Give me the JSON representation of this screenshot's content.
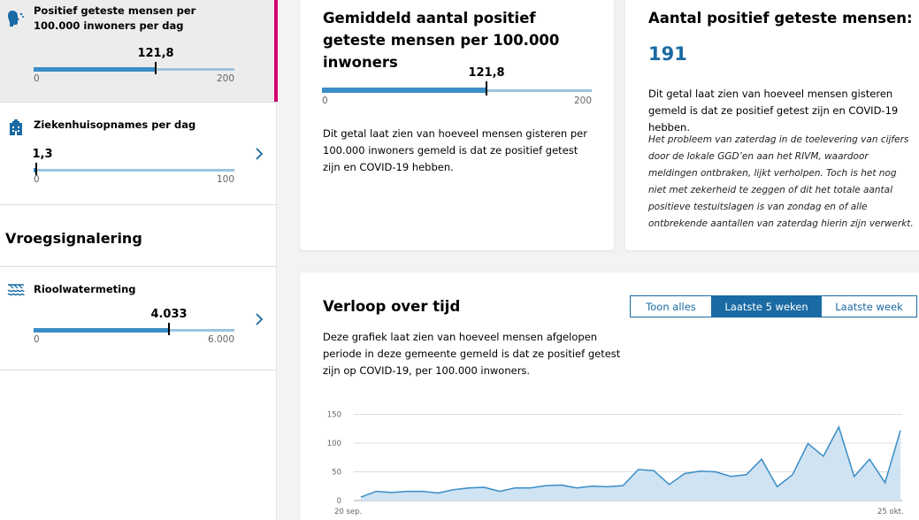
{
  "sidebar": {
    "items": [
      {
        "title": "Positief geteste mensen per 100.000 inwoners per dag",
        "value": 121.8,
        "value_label": "121,8",
        "min_label": "0",
        "max_label": "200",
        "max": 200
      },
      {
        "title": "Ziekenhuisopnames per dag",
        "value": 1.3,
        "value_label": "1,3",
        "min_label": "0",
        "max_label": "100",
        "max": 100
      },
      {
        "title": "Rioolwatermeting",
        "value": 4033,
        "value_label": "4.033",
        "min_label": "0",
        "max_label": "6.000",
        "max": 6000
      }
    ],
    "section_heading": "Vroegsignalering"
  },
  "card_avg": {
    "title": "Gemiddeld aantal positief geteste mensen per 100.000 inwoners",
    "value": 121.8,
    "value_label": "121,8",
    "min_label": "0",
    "max_label": "200",
    "max": 200,
    "description": "Dit getal laat zien van hoeveel mensen gisteren per 100.000 inwoners gemeld is dat ze positief getest zijn en COVID-19 hebben."
  },
  "card_total": {
    "title": "Aantal positief geteste mensen:",
    "value_label": "191",
    "description": "Dit getal laat zien van hoeveel mensen gisteren gemeld is dat ze positief getest zijn en COVID-19 hebben.",
    "note": "Het probleem van zaterdag in de toelevering van cijfers door de lokale GGD’en aan het RIVM, waardoor meldingen ontbraken, lijkt verholpen. Toch is het nog niet met zekerheid te zeggen of dit het totale aantal positieve testuitslagen is van zondag en of alle ontbrekende aantallen van zaterdag hierin zijn verwerkt."
  },
  "timeline": {
    "title": "Verloop over tijd",
    "description": "Deze grafiek laat zien van hoeveel mensen afgelopen periode in deze gemeente gemeld is dat ze positief getest zijn op COVID-19, per 100.000 inwoners.",
    "toggle": [
      "Toon alles",
      "Laatste 5 weken",
      "Laatste week"
    ],
    "selected": "Laatste 5 weken"
  },
  "colors": {
    "accent": "#1a6aa3",
    "bar": "#3a8dc7",
    "active_marker": "#d0006f",
    "area_fill": "#cfe3f3"
  },
  "chart_data": {
    "type": "area",
    "x_labels": [
      "20 sep.",
      "25 okt."
    ],
    "yticks": [
      0,
      50,
      100,
      150
    ],
    "ylim": [
      0,
      160
    ],
    "grid": true,
    "values": [
      6,
      16,
      14,
      16,
      16,
      13,
      19,
      22,
      23,
      16,
      22,
      22,
      26,
      27,
      22,
      25,
      24,
      26,
      54,
      52,
      28,
      47,
      51,
      50,
      42,
      45,
      72,
      24,
      45,
      99,
      77,
      128,
      42,
      72,
      31,
      122
    ]
  }
}
